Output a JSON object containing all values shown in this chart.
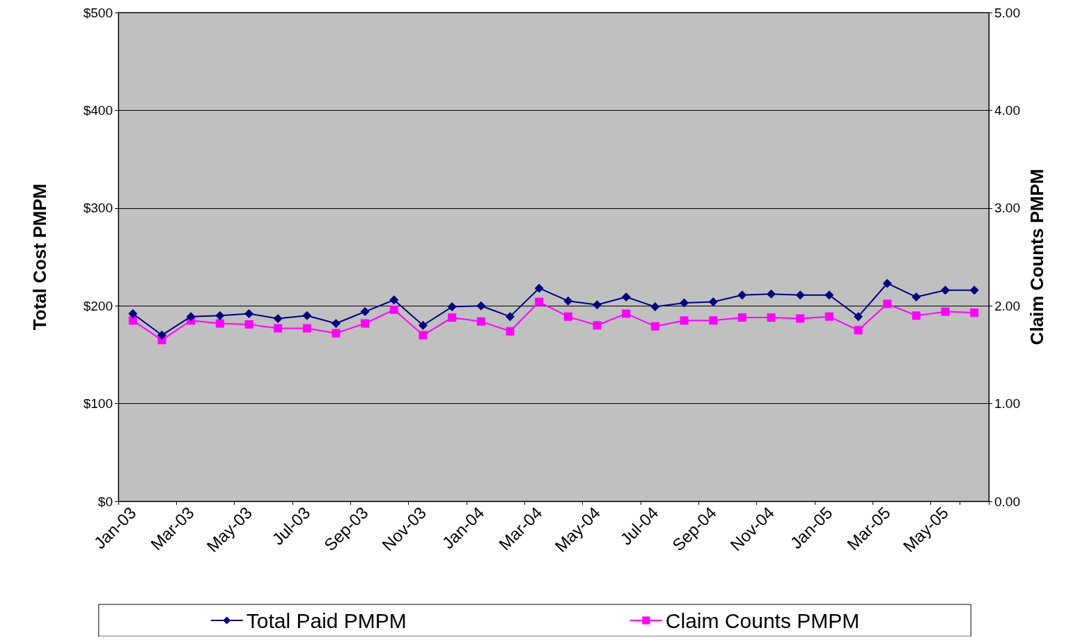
{
  "chart_data": {
    "type": "line",
    "ylabel": "Total Cost PMPM",
    "y2label": "Claim Counts PMPM",
    "categories": [
      "Jan-03",
      null,
      "Mar-03",
      null,
      "May-03",
      null,
      "Jul-03",
      null,
      "Sep-03",
      null,
      "Nov-03",
      null,
      "Jan-04",
      null,
      "Mar-04",
      null,
      "May-04",
      null,
      "Jul-04",
      null,
      "Sep-04",
      null,
      "Nov-04",
      null,
      "Jan-05",
      null,
      "Mar-05",
      null,
      "May-05",
      null
    ],
    "series": [
      {
        "name": "Total Paid PMPM",
        "color": "#000080",
        "marker": "diamond",
        "values": [
          192,
          170,
          189,
          190,
          192,
          187,
          190,
          182,
          194,
          206,
          180,
          199,
          200,
          189,
          218,
          205,
          201,
          209,
          199,
          203,
          204,
          211,
          212,
          211,
          211,
          189,
          223,
          209,
          216,
          216
        ]
      },
      {
        "name": "Claim Counts PMPM",
        "color": "#ff00ff",
        "marker": "square",
        "axis": "y2",
        "values": [
          1.85,
          1.65,
          1.85,
          1.82,
          1.81,
          1.77,
          1.77,
          1.72,
          1.82,
          1.96,
          1.7,
          1.88,
          1.84,
          1.74,
          2.04,
          1.89,
          1.8,
          1.92,
          1.79,
          1.85,
          1.85,
          1.88,
          1.88,
          1.87,
          1.89,
          1.75,
          2.02,
          1.9,
          1.94,
          1.93
        ]
      }
    ],
    "ylim": [
      0,
      500
    ],
    "yticks": [
      {
        "value": 0,
        "label": "$0"
      },
      {
        "value": 100,
        "label": "$100"
      },
      {
        "value": 200,
        "label": "$200"
      },
      {
        "value": 300,
        "label": "$300"
      },
      {
        "value": 400,
        "label": "$400"
      },
      {
        "value": 500,
        "label": "$500"
      }
    ],
    "y2lim": [
      0,
      5
    ],
    "y2ticks": [
      {
        "value": 0,
        "label": "0.00"
      },
      {
        "value": 1,
        "label": "1.00"
      },
      {
        "value": 2,
        "label": "2.00"
      },
      {
        "value": 3,
        "label": "3.00"
      },
      {
        "value": 4,
        "label": "4.00"
      },
      {
        "value": 5,
        "label": "5.00"
      }
    ],
    "grid": "y",
    "legend": "bottom",
    "line_style": "solid"
  }
}
